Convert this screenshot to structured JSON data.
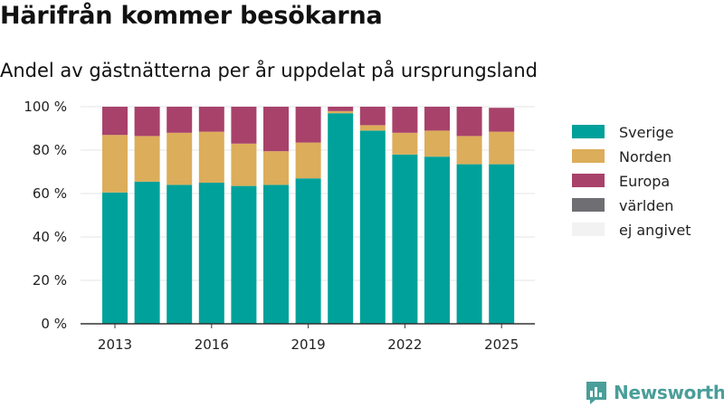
{
  "header": {
    "title": "Härifrån kommer besökarna",
    "subtitle": "Andel av gästnätterna per år uppdelat på ursprungsland"
  },
  "brand": {
    "name": "Newsworthy",
    "color": "#4a9e99"
  },
  "chart_data": {
    "type": "bar",
    "stacked": true,
    "categories": [
      "2013",
      "2014",
      "2015",
      "2016",
      "2017",
      "2018",
      "2019",
      "2020",
      "2021",
      "2022",
      "2023",
      "2024",
      "2025"
    ],
    "x_tick_labels": [
      "2013",
      "2016",
      "2019",
      "2022",
      "2025"
    ],
    "y_tick_labels": [
      "0 %",
      "20 %",
      "40 %",
      "60 %",
      "80 %",
      "100 %"
    ],
    "ylim": [
      0,
      100
    ],
    "grid": true,
    "legend_position": "right",
    "series": [
      {
        "name": "Sverige",
        "color": "#00a19a",
        "values": [
          60.5,
          65.5,
          64,
          65,
          63.5,
          64,
          67,
          97,
          89,
          78,
          77,
          73.5,
          73.5
        ]
      },
      {
        "name": "Norden",
        "color": "#dcad5a",
        "values": [
          26.5,
          21,
          24,
          23.5,
          19.5,
          15.5,
          16.5,
          1,
          2.5,
          10,
          12,
          13,
          15
        ]
      },
      {
        "name": "Europa",
        "color": "#a8426b",
        "values": [
          13,
          13.5,
          12,
          11.5,
          17,
          20.5,
          16.5,
          2,
          8.5,
          12,
          11,
          13.5,
          11
        ]
      },
      {
        "name": "världen",
        "color": "#6e6e73",
        "values": [
          0,
          0,
          0,
          0,
          0,
          0,
          0,
          0,
          0,
          0,
          0,
          0,
          0
        ]
      },
      {
        "name": "ej angivet",
        "color": "#f2f2f2",
        "values": [
          0,
          0,
          0,
          0,
          0,
          0,
          0,
          0,
          0,
          0,
          0,
          0,
          0
        ]
      }
    ]
  }
}
